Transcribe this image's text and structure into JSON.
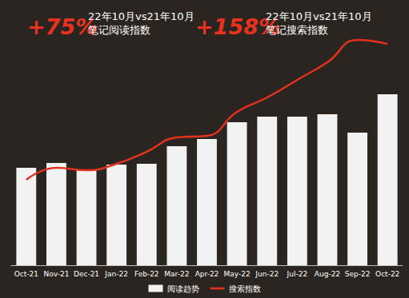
{
  "chart_data": {
    "type": "bar",
    "categories": [
      "Oct-21",
      "Nov-21",
      "Dec-21",
      "Jan-22",
      "Feb-22",
      "Mar-22",
      "Apr-22",
      "May-22",
      "Jun-22",
      "Jul-22",
      "Aug-22",
      "Sep-22",
      "Oct-22"
    ],
    "series": [
      {
        "name": "阅读趋势",
        "type": "bar",
        "color": "#f2f2f2",
        "values": [
          122,
          128,
          120,
          126,
          127,
          149,
          158,
          179,
          186,
          186,
          189,
          166,
          214
        ]
      },
      {
        "name": "搜索指数",
        "type": "line",
        "color": "#e2311d",
        "line_style": "smooth",
        "marker": "none",
        "values": [
          107,
          122,
          119,
          127,
          142,
          160,
          162,
          192,
          210,
          232,
          254,
          282,
          277
        ]
      }
    ],
    "ylim": [
      0,
      300
    ],
    "tick_labels": "x",
    "grid": false,
    "legend": "bottom",
    "annotations": [
      {
        "highlight": "+75%",
        "lines": [
          "22年10月vs21年10月",
          "笔记阅读指数"
        ]
      },
      {
        "highlight": "+158%",
        "lines": [
          "22年10月vs21年10月",
          "笔记搜索指数"
        ]
      }
    ]
  }
}
